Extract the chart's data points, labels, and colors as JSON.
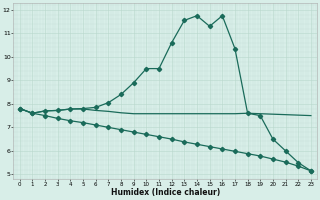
{
  "xlabel": "Humidex (Indice chaleur)",
  "ylabel": "",
  "xlim": [
    0,
    23
  ],
  "ylim": [
    4.8,
    12.3
  ],
  "xticks": [
    0,
    1,
    2,
    3,
    4,
    5,
    6,
    7,
    8,
    9,
    10,
    11,
    12,
    13,
    14,
    15,
    16,
    17,
    18,
    19,
    20,
    21,
    22,
    23
  ],
  "yticks": [
    5,
    6,
    7,
    8,
    9,
    10,
    11,
    12
  ],
  "bg_color": "#d8eee8",
  "grid_color_major": "#b8d8cc",
  "grid_color_minor": "#c8e4da",
  "line_color": "#1a6b5a",
  "line1_x": [
    0,
    1,
    2,
    3,
    4,
    5,
    6,
    7,
    8,
    9,
    10,
    11,
    12,
    13,
    14,
    15,
    16,
    17,
    18,
    19,
    20,
    21,
    22,
    23
  ],
  "line1_y": [
    7.8,
    7.6,
    7.7,
    7.72,
    7.78,
    7.8,
    7.85,
    8.05,
    8.4,
    8.9,
    9.5,
    9.5,
    10.6,
    11.55,
    11.75,
    11.3,
    11.75,
    10.35,
    7.6,
    7.5,
    6.5,
    6.0,
    5.5,
    5.15
  ],
  "line2_x": [
    0,
    1,
    2,
    3,
    4,
    5,
    6,
    7,
    8,
    9,
    10,
    11,
    12,
    13,
    14,
    15,
    16,
    17,
    18,
    23
  ],
  "line2_y": [
    7.8,
    7.6,
    7.7,
    7.72,
    7.78,
    7.78,
    7.72,
    7.68,
    7.62,
    7.58,
    7.58,
    7.58,
    7.58,
    7.58,
    7.58,
    7.58,
    7.58,
    7.58,
    7.6,
    7.5
  ],
  "line3_x": [
    0,
    1,
    2,
    3,
    4,
    5,
    6,
    7,
    8,
    9,
    10,
    11,
    12,
    13,
    14,
    15,
    16,
    17,
    18,
    19,
    20,
    21,
    22,
    23
  ],
  "line3_y": [
    7.8,
    7.6,
    7.5,
    7.38,
    7.28,
    7.2,
    7.1,
    7.0,
    6.9,
    6.8,
    6.7,
    6.6,
    6.5,
    6.38,
    6.28,
    6.18,
    6.08,
    5.98,
    5.88,
    5.78,
    5.65,
    5.52,
    5.35,
    5.15
  ],
  "figsize": [
    3.2,
    2.0
  ],
  "dpi": 100
}
